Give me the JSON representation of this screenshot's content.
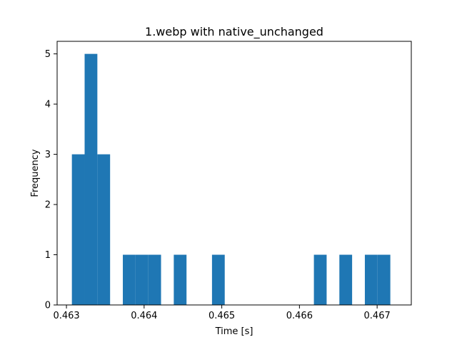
{
  "chart_data": {
    "type": "bar",
    "title": "1.webp with native_unchanged",
    "xlabel": "Time [s]",
    "ylabel": "Frequency",
    "xlim": [
      0.46288,
      0.46744
    ],
    "ylim": [
      0,
      5.25
    ],
    "bin_start": 0.46307,
    "bin_width": 0.000164,
    "values": [
      3,
      5,
      3,
      0,
      1,
      1,
      1,
      0,
      1,
      0,
      0,
      1,
      0,
      0,
      0,
      0,
      0,
      0,
      0,
      1,
      0,
      1,
      0,
      1,
      1
    ],
    "xticks": [
      {
        "value": 0.463,
        "label": "0.463"
      },
      {
        "value": 0.464,
        "label": "0.464"
      },
      {
        "value": 0.465,
        "label": "0.465"
      },
      {
        "value": 0.466,
        "label": "0.466"
      },
      {
        "value": 0.467,
        "label": "0.467"
      }
    ],
    "yticks": [
      {
        "value": 0,
        "label": "0"
      },
      {
        "value": 1,
        "label": "1"
      },
      {
        "value": 2,
        "label": "2"
      },
      {
        "value": 3,
        "label": "3"
      },
      {
        "value": 4,
        "label": "4"
      },
      {
        "value": 5,
        "label": "5"
      }
    ],
    "bar_color": "#1f77b4",
    "grid": false,
    "legend": false
  }
}
